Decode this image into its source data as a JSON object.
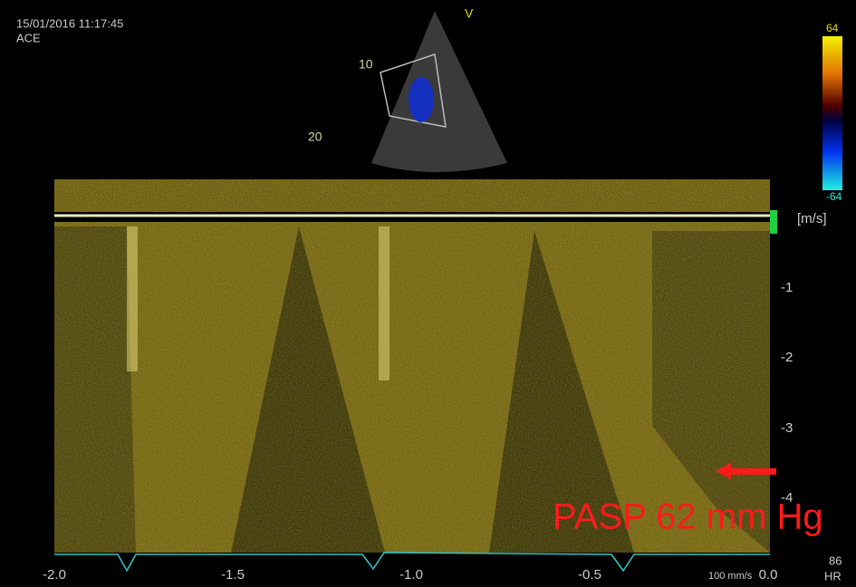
{
  "header": {
    "datetime": "15/01/2016 11:17:45",
    "mode": "ACE"
  },
  "sector": {
    "depth_labels": [
      "10",
      "20"
    ],
    "marker": "V"
  },
  "color_bar": {
    "top": "64",
    "bottom": "-64"
  },
  "velocity_scale": {
    "unit": "[m/s]",
    "ticks": [
      "-1",
      "-2",
      "-3",
      "-4"
    ]
  },
  "time_axis": {
    "ticks": [
      "-2.0",
      "-1.5",
      "-1.0",
      "-0.5",
      "0.0"
    ],
    "sweep": "100 mm/s"
  },
  "heart_rate": {
    "value": "86",
    "label": "HR"
  },
  "annotation": "PASP 62 mm Hg"
}
